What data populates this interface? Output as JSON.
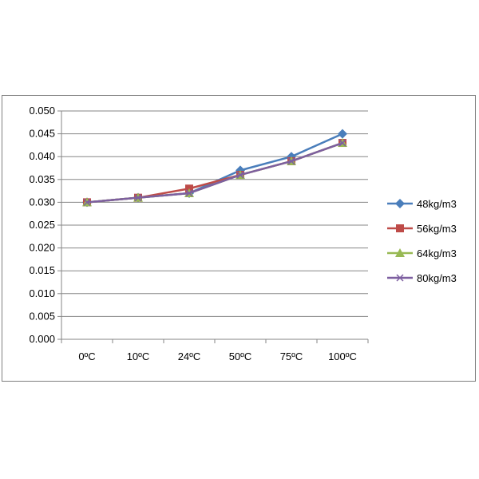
{
  "chart_data": {
    "type": "line",
    "title": "",
    "xlabel": "",
    "ylabel": "",
    "categories": [
      "0ºC",
      "10ºC",
      "24ºC",
      "50ºC",
      "75ºC",
      "100ºC"
    ],
    "ylim": [
      0,
      0.05
    ],
    "ytick_values": [
      0,
      0.005,
      0.01,
      0.015,
      0.02,
      0.025,
      0.03,
      0.035,
      0.04,
      0.045,
      0.05
    ],
    "ytick_labels": [
      "0.000",
      "0.005",
      "0.010",
      "0.015",
      "0.020",
      "0.025",
      "0.030",
      "0.035",
      "0.040",
      "0.045",
      "0.050"
    ],
    "grid": true,
    "legend_position": "right",
    "series": [
      {
        "name": "48kg/m3",
        "color": "#4a7ebb",
        "marker": "diamond",
        "values": [
          0.03,
          0.031,
          0.032,
          0.037,
          0.04,
          0.045
        ]
      },
      {
        "name": "56kg/m3",
        "color": "#be4b48",
        "marker": "square",
        "values": [
          0.03,
          0.031,
          0.033,
          0.036,
          0.039,
          0.043
        ]
      },
      {
        "name": "64kg/m3",
        "color": "#98b954",
        "marker": "triangle",
        "values": [
          0.03,
          0.031,
          0.032,
          0.036,
          0.039,
          0.043
        ]
      },
      {
        "name": "80kg/m3",
        "color": "#7d5fa0",
        "marker": "x",
        "values": [
          0.03,
          0.031,
          0.032,
          0.036,
          0.039,
          0.043
        ]
      }
    ]
  }
}
